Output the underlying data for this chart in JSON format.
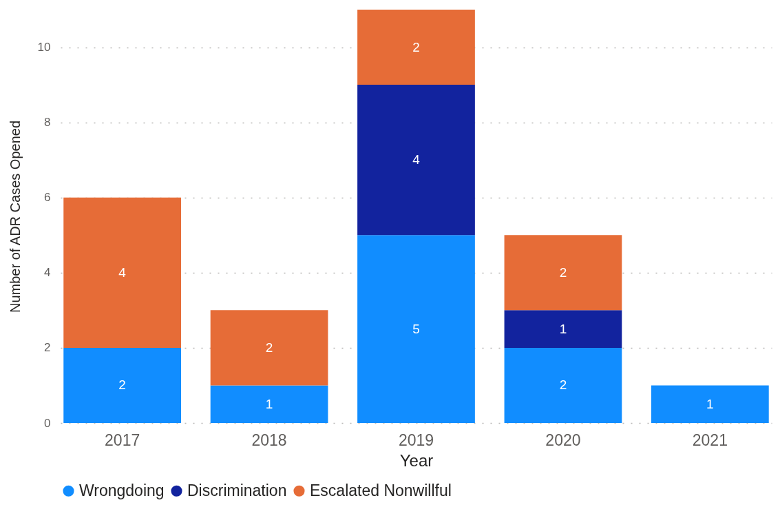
{
  "chart_data": {
    "type": "bar",
    "stacked": true,
    "xlabel": "Year",
    "ylabel": "Number of ADR Cases Opened",
    "categories": [
      "2017",
      "2018",
      "2019",
      "2020",
      "2021"
    ],
    "series": [
      {
        "name": "Wrongdoing",
        "color": "#118dff",
        "values": [
          2,
          1,
          5,
          2,
          1
        ]
      },
      {
        "name": "Discrimination",
        "color": "#12239e",
        "values": [
          null,
          null,
          4,
          1,
          null
        ]
      },
      {
        "name": "Escalated Nonwillful",
        "color": "#e66c37",
        "values": [
          4,
          2,
          2,
          2,
          null
        ]
      }
    ],
    "ylim": [
      0,
      11
    ],
    "yticks": [
      0,
      2,
      4,
      6,
      8,
      10
    ],
    "grid": "y",
    "legend": "bottom",
    "data_labels": true
  }
}
